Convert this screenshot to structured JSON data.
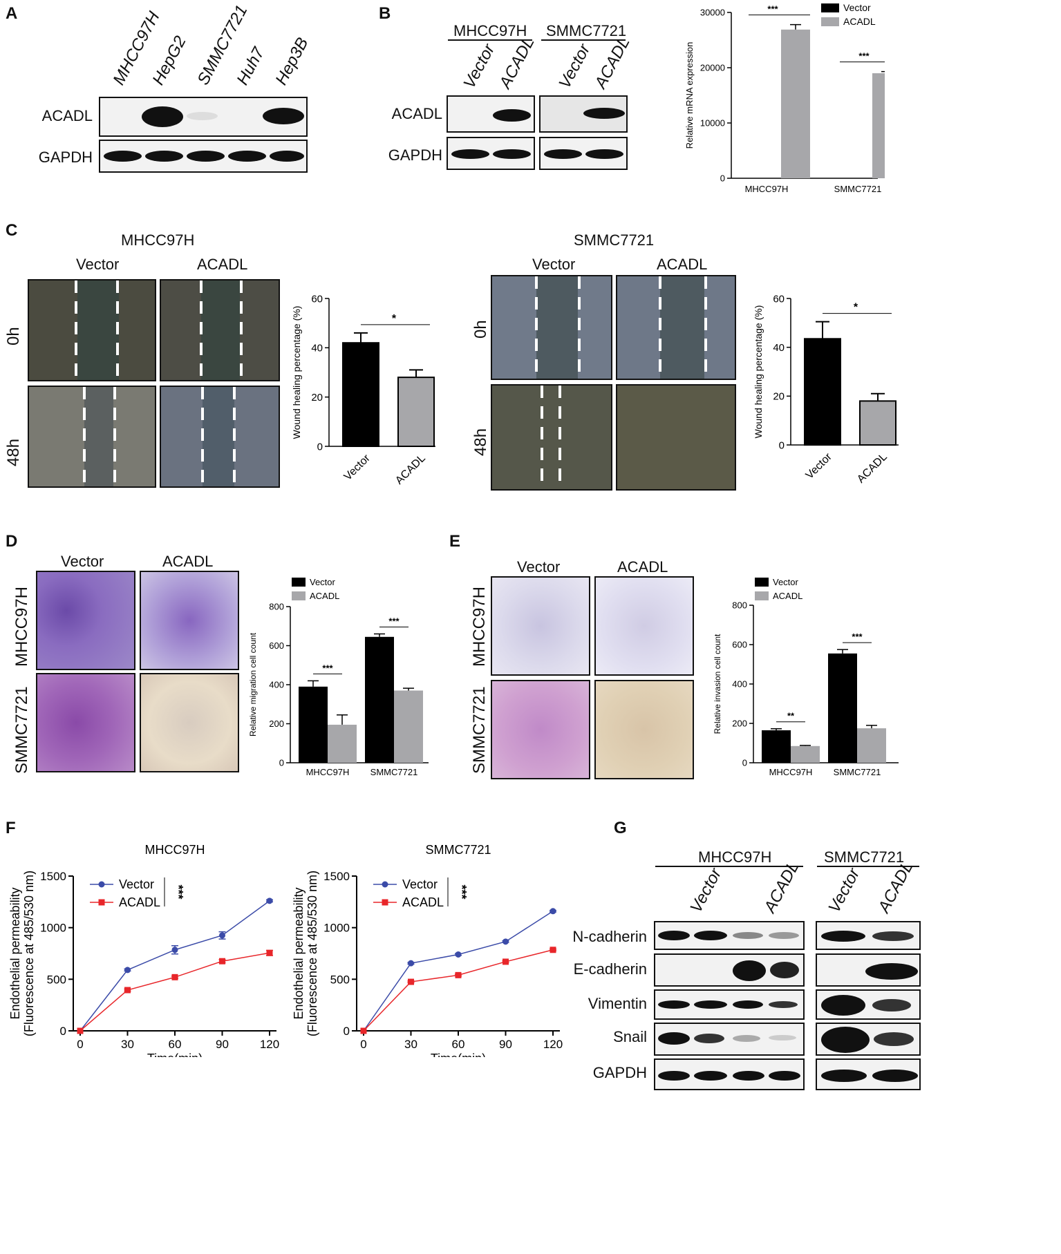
{
  "panels": {
    "A": "A",
    "B": "B",
    "C": "C",
    "D": "D",
    "E": "E",
    "F": "F",
    "G": "G"
  },
  "panelA": {
    "lanes": [
      "MHCC97H",
      "HepG2",
      "SMMC7721",
      "Huh7",
      "Hep3B"
    ],
    "rows": [
      "ACADL",
      "GAPDH"
    ]
  },
  "panelB": {
    "groups": [
      "MHCC97H",
      "SMMC7721"
    ],
    "lanes": [
      "Vector",
      "ACADL",
      "Vector",
      "ACADL"
    ],
    "rows": [
      "ACADL",
      "GAPDH"
    ]
  },
  "panelC": {
    "left_title": "MHCC97H",
    "right_title": "SMMC7721",
    "col_labels": [
      "Vector",
      "ACADL"
    ],
    "row_labels": [
      "0h",
      "48h"
    ]
  },
  "panelD": {
    "col_labels": [
      "Vector",
      "ACADL"
    ],
    "row_labels": [
      "MHCC97H",
      "SMMC7721"
    ]
  },
  "panelE": {
    "col_labels": [
      "Vector",
      "ACADL"
    ],
    "row_labels": [
      "MHCC97H",
      "SMMC7721"
    ]
  },
  "panelG": {
    "groups": [
      "MHCC97H",
      "SMMC7721"
    ],
    "lanes": [
      "Vector",
      "ACADL",
      "Vector",
      "ACADL"
    ],
    "rows": [
      "N-cadherin",
      "E-cadherin",
      "Vimentin",
      "Snail",
      "GAPDH"
    ]
  },
  "colors": {
    "vector": "#000000",
    "acadl": "#a7a7aa",
    "line_vector": "#3b4ba8",
    "line_acadl": "#e8262a"
  },
  "chart_data": [
    {
      "id": "B-bar",
      "type": "bar",
      "categories": [
        "MHCC97H",
        "SMMC7721"
      ],
      "series": [
        {
          "name": "Vector",
          "values": [
            0,
            0
          ]
        },
        {
          "name": "ACADL",
          "values": [
            26900,
            19000
          ]
        }
      ],
      "errors": [
        [
          0,
          0
        ],
        [
          900,
          300
        ]
      ],
      "ylabel": "Relative mRNA expression",
      "ylim": [
        0,
        30000
      ],
      "yticks": [
        0,
        10000,
        20000,
        30000
      ],
      "sig": [
        "***",
        "***"
      ],
      "legend": "top-right"
    },
    {
      "id": "C-left",
      "type": "bar",
      "categories": [
        "Vector",
        "ACADL"
      ],
      "values": [
        42,
        28
      ],
      "errors": [
        4,
        3
      ],
      "ylabel": "Wound healing percentage (%)",
      "ylim": [
        0,
        60
      ],
      "yticks": [
        0,
        20,
        40,
        60
      ],
      "sig": "*"
    },
    {
      "id": "C-right",
      "type": "bar",
      "categories": [
        "Vector",
        "ACADL"
      ],
      "values": [
        43.5,
        18
      ],
      "errors": [
        7,
        3
      ],
      "ylabel": "Wound healing percentage (%)",
      "ylim": [
        0,
        60
      ],
      "yticks": [
        0,
        20,
        40,
        60
      ],
      "sig": "*"
    },
    {
      "id": "D-bar",
      "type": "bar",
      "categories": [
        "MHCC97H",
        "SMMC7721"
      ],
      "series": [
        {
          "name": "Vector",
          "values": [
            390,
            645
          ]
        },
        {
          "name": "ACADL",
          "values": [
            195,
            370
          ]
        }
      ],
      "errors": [
        [
          30,
          15
        ],
        [
          50,
          12
        ]
      ],
      "ylabel": "Relative migration cell count",
      "ylim": [
        0,
        800
      ],
      "yticks": [
        0,
        200,
        400,
        600,
        800
      ],
      "sig": [
        "***",
        "***"
      ],
      "legend": "top-left"
    },
    {
      "id": "E-bar",
      "type": "bar",
      "categories": [
        "MHCC97H",
        "SMMC7721"
      ],
      "series": [
        {
          "name": "Vector",
          "values": [
            165,
            555
          ]
        },
        {
          "name": "ACADL",
          "values": [
            85,
            175
          ]
        }
      ],
      "errors": [
        [
          8,
          20
        ],
        [
          3,
          15
        ]
      ],
      "ylabel": "Relative invasion cell count",
      "ylim": [
        0,
        800
      ],
      "yticks": [
        0,
        200,
        400,
        600,
        800
      ],
      "sig": [
        "**",
        "***"
      ],
      "legend": "top-left"
    },
    {
      "id": "F-left",
      "type": "line",
      "title": "MHCC97H",
      "x": [
        0,
        30,
        60,
        90,
        120
      ],
      "series": [
        {
          "name": "Vector",
          "values": [
            0,
            590,
            785,
            925,
            1260
          ]
        },
        {
          "name": "ACADL",
          "values": [
            0,
            395,
            520,
            675,
            755
          ]
        }
      ],
      "errors": [
        [
          0,
          10,
          40,
          35,
          10
        ],
        [
          0,
          10,
          10,
          15,
          25
        ]
      ],
      "xlabel": "Time(min)",
      "ylabel": "Endothelial permeability (Fluorescence at 485/530 nm)",
      "xlim": [
        0,
        120
      ],
      "ylim": [
        0,
        1500
      ],
      "xticks": [
        0,
        30,
        60,
        90,
        120
      ],
      "yticks": [
        0,
        500,
        1000,
        1500
      ],
      "sig": "***",
      "legend": "top-left"
    },
    {
      "id": "F-right",
      "type": "line",
      "title": "SMMC7721",
      "x": [
        0,
        30,
        60,
        90,
        120
      ],
      "series": [
        {
          "name": "Vector",
          "values": [
            0,
            655,
            740,
            865,
            1160
          ]
        },
        {
          "name": "ACADL",
          "values": [
            0,
            475,
            540,
            670,
            785
          ]
        }
      ],
      "errors": [
        [
          0,
          8,
          8,
          8,
          8
        ],
        [
          0,
          8,
          8,
          8,
          8
        ]
      ],
      "xlabel": "Time(min)",
      "ylabel": "Endothelial permeability (Fluorescence at 485/530 nm)",
      "xlim": [
        0,
        120
      ],
      "ylim": [
        0,
        1500
      ],
      "xticks": [
        0,
        30,
        60,
        90,
        120
      ],
      "yticks": [
        0,
        500,
        1000,
        1500
      ],
      "sig": "***",
      "legend": "top-left"
    }
  ]
}
